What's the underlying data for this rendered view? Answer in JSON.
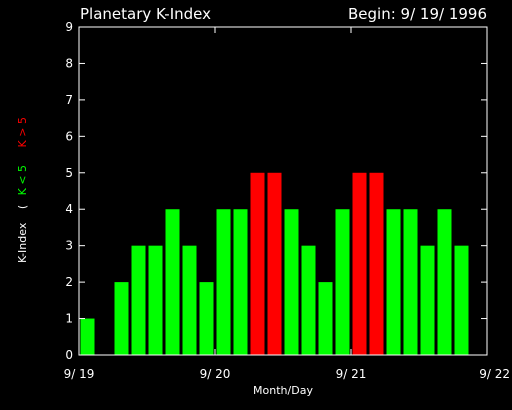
{
  "chart_data": {
    "type": "bar",
    "title": "Planetary K-Index",
    "begin_label": "Begin: 9/ 19/ 1996",
    "xlabel": "Month/Day",
    "ylabel": "K-Index",
    "ylabel_legend_open": "(",
    "legend": [
      {
        "label": "K < 5",
        "color": "#00ff00"
      },
      {
        "label": "K > 5",
        "color": "#ff0000"
      }
    ],
    "ylim": [
      0,
      9
    ],
    "yticks": [
      0,
      1,
      2,
      3,
      4,
      5,
      6,
      7,
      8,
      9
    ],
    "xlim": [
      0,
      24
    ],
    "xticks": [
      {
        "value": 0,
        "label": "9/ 19"
      },
      {
        "value": 8,
        "label": "9/ 20"
      },
      {
        "value": 16,
        "label": "9/ 21"
      },
      {
        "value": 24,
        "label": "9/ 22"
      }
    ],
    "bar_interval": 1,
    "values": [
      1,
      0,
      2,
      3,
      3,
      4,
      3,
      2,
      4,
      4,
      5,
      5,
      4,
      3,
      2,
      4,
      5,
      5,
      4,
      4,
      3,
      4,
      3,
      0
    ],
    "threshold": 5,
    "colors": {
      "below": "#00ff00",
      "at_or_above": "#ff0000",
      "axis": "#ffffff",
      "background": "#000000"
    }
  }
}
